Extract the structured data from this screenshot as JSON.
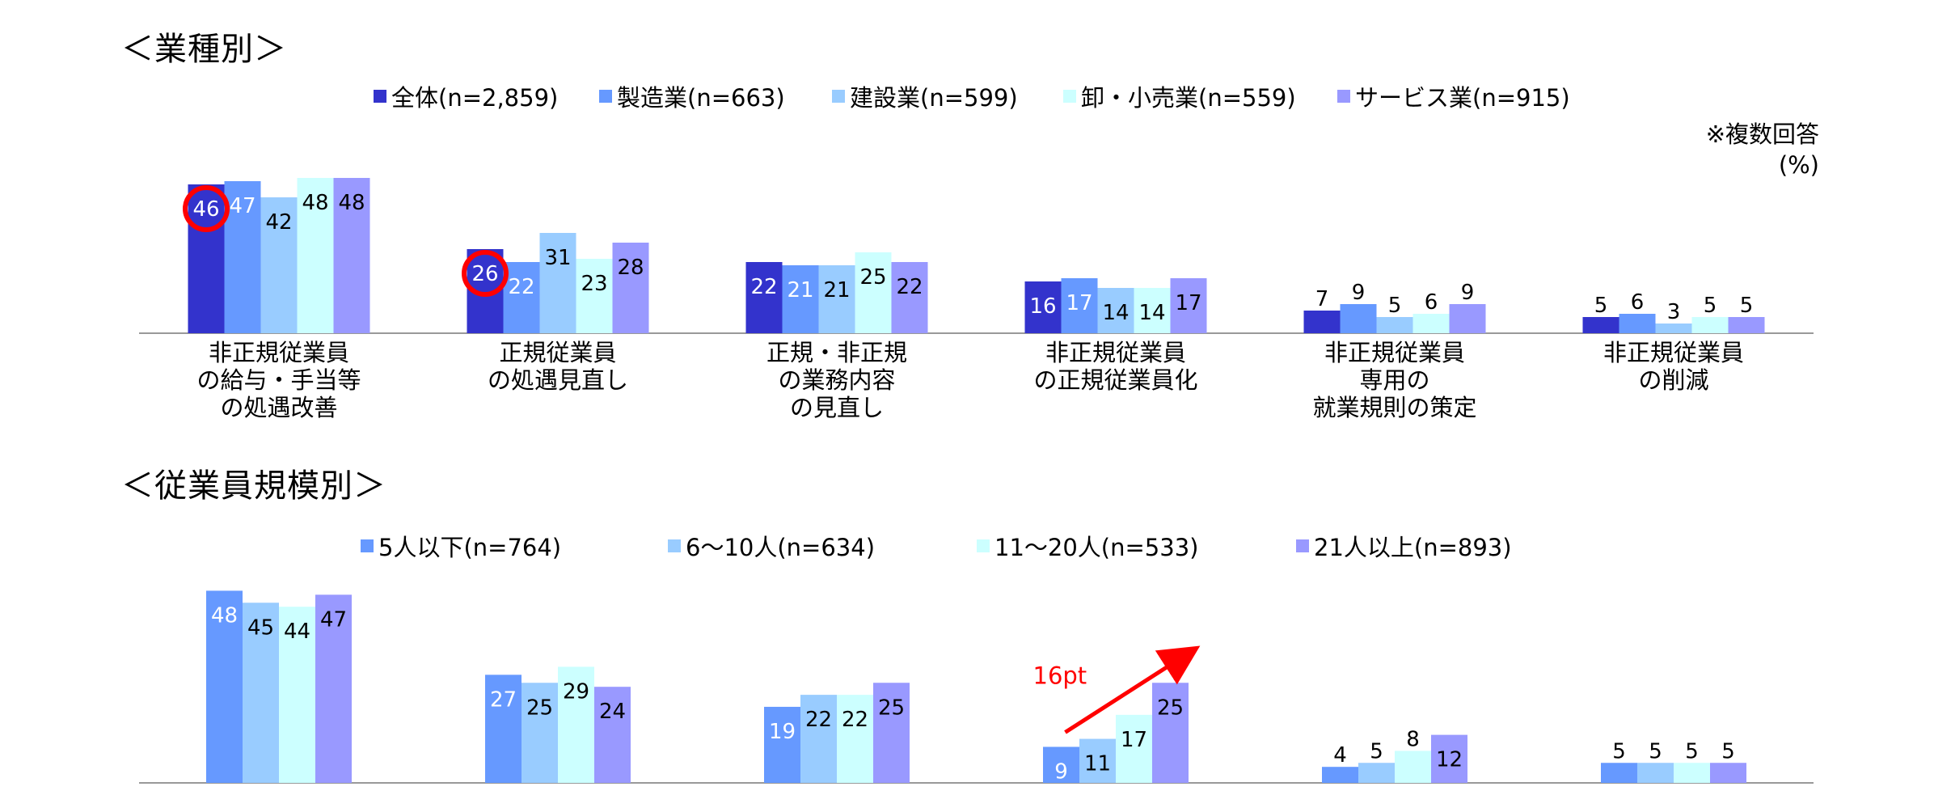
{
  "colors": {
    "navy": "#3333cc",
    "blue": "#6699ff",
    "lightblue": "#99ccff",
    "cyan": "#ccffff",
    "lavender": "#9999ff",
    "highlight": "#ff0000"
  },
  "note": {
    "line1": "※複数回答",
    "line2": "(%)"
  },
  "chart_data": [
    {
      "type": "bar",
      "title": "＜業種別＞",
      "categories": [
        [
          "非正規従業員",
          "の給与・手当等",
          "の処遇改善"
        ],
        [
          "正規従業員",
          "の処遇見直し"
        ],
        [
          "正規・非正規",
          "の業務内容",
          "の見直し"
        ],
        [
          "非正規従業員",
          "の正規従業員化"
        ],
        [
          "非正規従業員",
          "専用の",
          "就業規則の策定"
        ],
        [
          "非正規従業員",
          "の削減"
        ]
      ],
      "series": [
        {
          "name": "全体(n=2,859)",
          "color": "#3333cc",
          "values": [
            46,
            26,
            22,
            16,
            7,
            5
          ]
        },
        {
          "name": "製造業(n=663)",
          "color": "#6699ff",
          "values": [
            47,
            22,
            21,
            17,
            9,
            6
          ]
        },
        {
          "name": "建設業(n=599)",
          "color": "#99ccff",
          "values": [
            42,
            31,
            21,
            14,
            5,
            3
          ]
        },
        {
          "name": "卸・小売業(n=559)",
          "color": "#ccffff",
          "values": [
            48,
            23,
            25,
            14,
            6,
            5
          ]
        },
        {
          "name": "サービス業(n=915)",
          "color": "#9999ff",
          "values": [
            48,
            28,
            22,
            17,
            9,
            5
          ]
        }
      ],
      "highlighted": [
        [
          0,
          0
        ],
        [
          1,
          0
        ]
      ],
      "ylim": [
        0,
        50
      ]
    },
    {
      "type": "bar",
      "title": "＜従業員規模別＞",
      "series": [
        {
          "name": "5人以下(n=764)",
          "color": "#6699ff",
          "values": [
            48,
            27,
            19,
            9,
            4,
            5
          ]
        },
        {
          "name": "6～10人(n=634)",
          "color": "#99ccff",
          "values": [
            45,
            25,
            22,
            11,
            5,
            5
          ]
        },
        {
          "name": "11～20人(n=533)",
          "color": "#ccffff",
          "values": [
            44,
            29,
            22,
            17,
            8,
            5
          ]
        },
        {
          "name": "21人以上(n=893)",
          "color": "#9999ff",
          "values": [
            47,
            24,
            25,
            25,
            12,
            5
          ]
        }
      ],
      "annotation": {
        "text": "16pt",
        "from": [
          3,
          0
        ],
        "to": [
          3,
          3
        ]
      },
      "ylim": [
        0,
        50
      ]
    }
  ]
}
